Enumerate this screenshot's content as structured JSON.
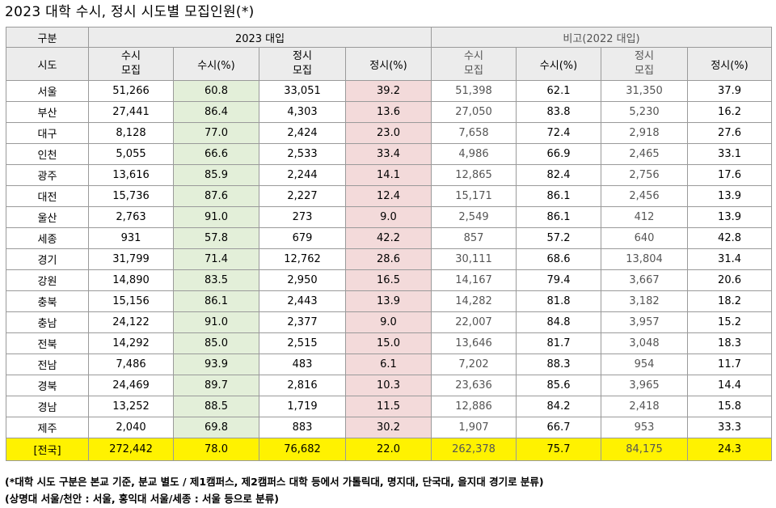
{
  "title": "2023 대학 수시, 정시 시도별 모집인원(*)",
  "header": {
    "group_label": "구분",
    "main_label": "2023 대입",
    "compare_label": "비고(2022 대입)",
    "region_label": "시도",
    "col_susi_line1": "수시",
    "col_susi_line2": "모집",
    "col_susi_pct": "수시(%)",
    "col_jungsi_line1": "정시",
    "col_jungsi_line2": "모집",
    "col_jungsi_pct": "정시(%)"
  },
  "rows": [
    {
      "region": "서울",
      "susi": "51,266",
      "susi_pct": "60.8",
      "jungsi": "33,051",
      "jungsi_pct": "39.2",
      "p_susi": "51,398",
      "p_susi_pct": "62.1",
      "p_jungsi": "31,350",
      "p_jungsi_pct": "37.9"
    },
    {
      "region": "부산",
      "susi": "27,441",
      "susi_pct": "86.4",
      "jungsi": "4,303",
      "jungsi_pct": "13.6",
      "p_susi": "27,050",
      "p_susi_pct": "83.8",
      "p_jungsi": "5,230",
      "p_jungsi_pct": "16.2"
    },
    {
      "region": "대구",
      "susi": "8,128",
      "susi_pct": "77.0",
      "jungsi": "2,424",
      "jungsi_pct": "23.0",
      "p_susi": "7,658",
      "p_susi_pct": "72.4",
      "p_jungsi": "2,918",
      "p_jungsi_pct": "27.6"
    },
    {
      "region": "인천",
      "susi": "5,055",
      "susi_pct": "66.6",
      "jungsi": "2,533",
      "jungsi_pct": "33.4",
      "p_susi": "4,986",
      "p_susi_pct": "66.9",
      "p_jungsi": "2,465",
      "p_jungsi_pct": "33.1"
    },
    {
      "region": "광주",
      "susi": "13,616",
      "susi_pct": "85.9",
      "jungsi": "2,244",
      "jungsi_pct": "14.1",
      "p_susi": "12,865",
      "p_susi_pct": "82.4",
      "p_jungsi": "2,756",
      "p_jungsi_pct": "17.6"
    },
    {
      "region": "대전",
      "susi": "15,736",
      "susi_pct": "87.6",
      "jungsi": "2,227",
      "jungsi_pct": "12.4",
      "p_susi": "15,171",
      "p_susi_pct": "86.1",
      "p_jungsi": "2,456",
      "p_jungsi_pct": "13.9"
    },
    {
      "region": "울산",
      "susi": "2,763",
      "susi_pct": "91.0",
      "jungsi": "273",
      "jungsi_pct": "9.0",
      "p_susi": "2,549",
      "p_susi_pct": "86.1",
      "p_jungsi": "412",
      "p_jungsi_pct": "13.9"
    },
    {
      "region": "세종",
      "susi": "931",
      "susi_pct": "57.8",
      "jungsi": "679",
      "jungsi_pct": "42.2",
      "p_susi": "857",
      "p_susi_pct": "57.2",
      "p_jungsi": "640",
      "p_jungsi_pct": "42.8"
    },
    {
      "region": "경기",
      "susi": "31,799",
      "susi_pct": "71.4",
      "jungsi": "12,762",
      "jungsi_pct": "28.6",
      "p_susi": "30,111",
      "p_susi_pct": "68.6",
      "p_jungsi": "13,804",
      "p_jungsi_pct": "31.4"
    },
    {
      "region": "강원",
      "susi": "14,890",
      "susi_pct": "83.5",
      "jungsi": "2,950",
      "jungsi_pct": "16.5",
      "p_susi": "14,167",
      "p_susi_pct": "79.4",
      "p_jungsi": "3,667",
      "p_jungsi_pct": "20.6"
    },
    {
      "region": "충북",
      "susi": "15,156",
      "susi_pct": "86.1",
      "jungsi": "2,443",
      "jungsi_pct": "13.9",
      "p_susi": "14,282",
      "p_susi_pct": "81.8",
      "p_jungsi": "3,182",
      "p_jungsi_pct": "18.2"
    },
    {
      "region": "충남",
      "susi": "24,122",
      "susi_pct": "91.0",
      "jungsi": "2,377",
      "jungsi_pct": "9.0",
      "p_susi": "22,007",
      "p_susi_pct": "84.8",
      "p_jungsi": "3,957",
      "p_jungsi_pct": "15.2"
    },
    {
      "region": "전북",
      "susi": "14,292",
      "susi_pct": "85.0",
      "jungsi": "2,515",
      "jungsi_pct": "15.0",
      "p_susi": "13,646",
      "p_susi_pct": "81.7",
      "p_jungsi": "3,048",
      "p_jungsi_pct": "18.3"
    },
    {
      "region": "전남",
      "susi": "7,486",
      "susi_pct": "93.9",
      "jungsi": "483",
      "jungsi_pct": "6.1",
      "p_susi": "7,202",
      "p_susi_pct": "88.3",
      "p_jungsi": "954",
      "p_jungsi_pct": "11.7"
    },
    {
      "region": "경북",
      "susi": "24,469",
      "susi_pct": "89.7",
      "jungsi": "2,816",
      "jungsi_pct": "10.3",
      "p_susi": "23,636",
      "p_susi_pct": "85.6",
      "p_jungsi": "3,965",
      "p_jungsi_pct": "14.4"
    },
    {
      "region": "경남",
      "susi": "13,252",
      "susi_pct": "88.5",
      "jungsi": "1,719",
      "jungsi_pct": "11.5",
      "p_susi": "12,886",
      "p_susi_pct": "84.2",
      "p_jungsi": "2,418",
      "p_jungsi_pct": "15.8"
    },
    {
      "region": "제주",
      "susi": "2,040",
      "susi_pct": "69.8",
      "jungsi": "883",
      "jungsi_pct": "30.2",
      "p_susi": "1,907",
      "p_susi_pct": "66.7",
      "p_jungsi": "953",
      "p_jungsi_pct": "33.3"
    }
  ],
  "total": {
    "region": "[전국]",
    "susi": "272,442",
    "susi_pct": "78.0",
    "jungsi": "76,682",
    "jungsi_pct": "22.0",
    "p_susi": "262,378",
    "p_susi_pct": "75.7",
    "p_jungsi": "84,175",
    "p_jungsi_pct": "24.3"
  },
  "notes": [
    "(*대학 시도 구분은 본교 기준, 분교 별도 / 제1캠퍼스, 제2캠퍼스 대학 등에서 가톨릭대, 명지대, 단국대, 을지대 경기로 분류)",
    "(상명대 서울/천안 : 서울, 홍익대 서울/세종 : 서울 등으로 분류)"
  ],
  "colors": {
    "header_bg": "#ececec",
    "susi_pct_highlight": "#e3efd9",
    "jungsi_pct_highlight": "#f3dada",
    "total_row_highlight": "#fff200"
  }
}
